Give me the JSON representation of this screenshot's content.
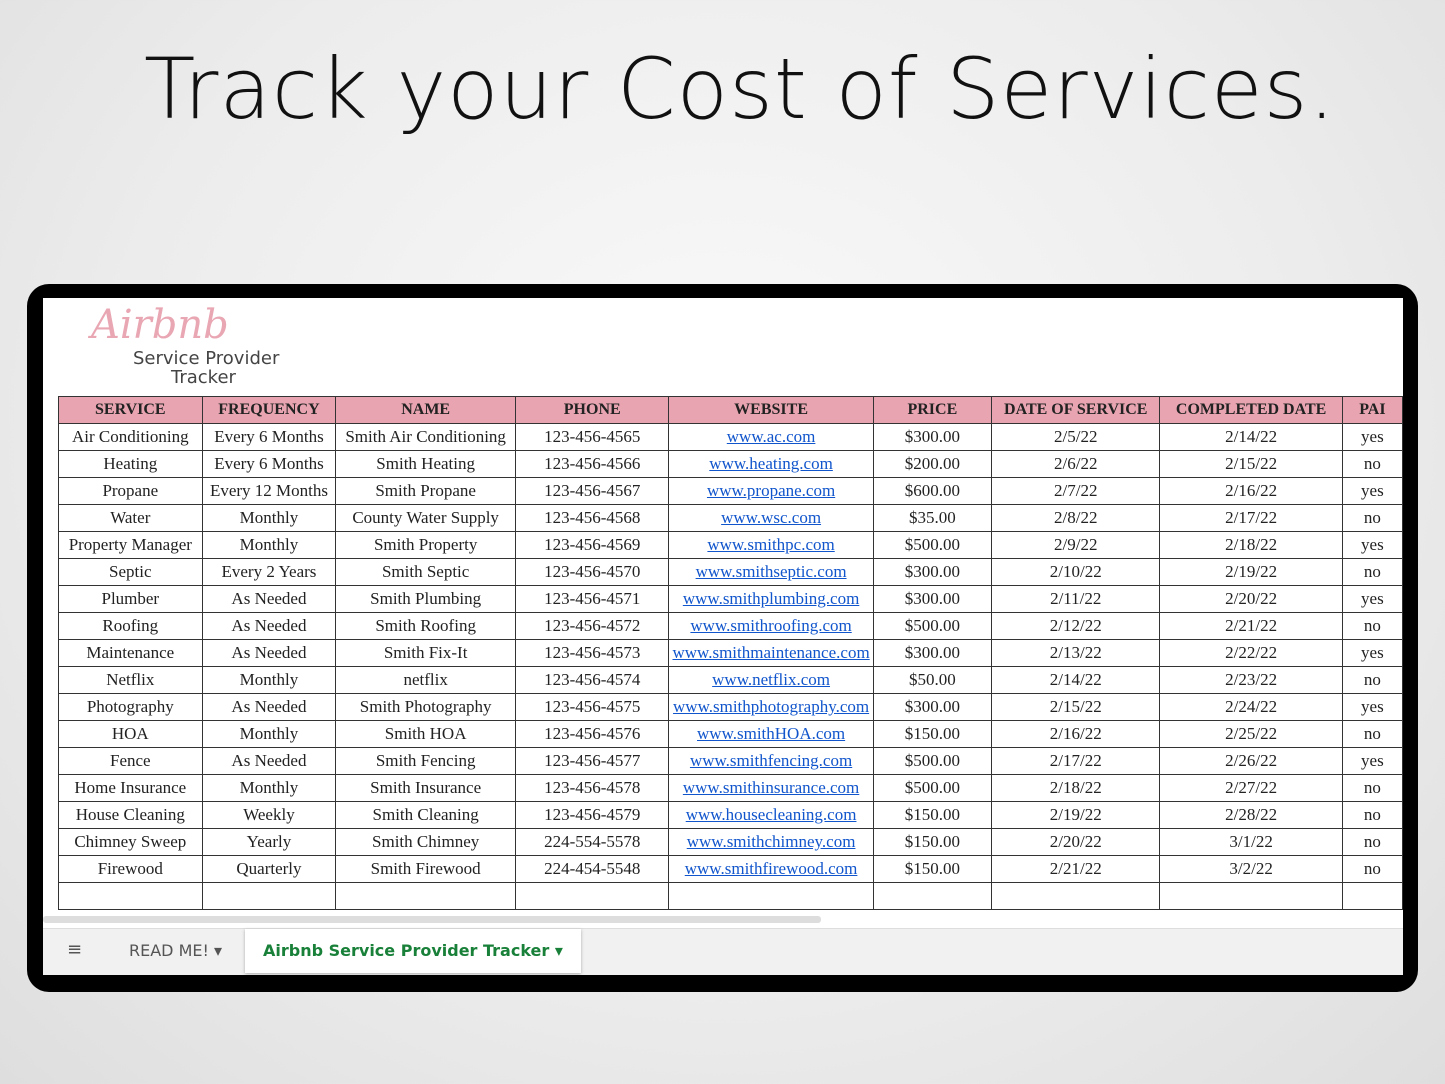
{
  "header": {
    "title": "Track your Cost of Services."
  },
  "logo": {
    "brand": "Airbnb",
    "line1": "Service Provider",
    "line2": "Tracker"
  },
  "table": {
    "columns": [
      "SERVICE",
      "FREQUENCY",
      "NAME",
      "PHONE",
      "WEBSITE",
      "PRICE",
      "DATE OF SERVICE",
      "COMPLETED DATE",
      "PAI"
    ],
    "rows": [
      [
        "Air Conditioning",
        "Every 6 Months",
        "Smith Air Conditioning",
        "123-456-4565",
        "www.ac.com",
        "$300.00",
        "2/5/22",
        "2/14/22",
        "yes"
      ],
      [
        "Heating",
        "Every 6 Months",
        "Smith Heating",
        "123-456-4566",
        "www.heating.com",
        "$200.00",
        "2/6/22",
        "2/15/22",
        "no"
      ],
      [
        "Propane",
        "Every 12 Months",
        "Smith Propane",
        "123-456-4567",
        "www.propane.com",
        "$600.00",
        "2/7/22",
        "2/16/22",
        "yes"
      ],
      [
        "Water",
        "Monthly",
        "County Water Supply",
        "123-456-4568",
        "www.wsc.com",
        "$35.00",
        "2/8/22",
        "2/17/22",
        "no"
      ],
      [
        "Property Manager",
        "Monthly",
        "Smith Property",
        "123-456-4569",
        "www.smithpc.com",
        "$500.00",
        "2/9/22",
        "2/18/22",
        "yes"
      ],
      [
        "Septic",
        "Every 2 Years",
        "Smith Septic",
        "123-456-4570",
        "www.smithseptic.com",
        "$300.00",
        "2/10/22",
        "2/19/22",
        "no"
      ],
      [
        "Plumber",
        "As Needed",
        "Smith Plumbing",
        "123-456-4571",
        "www.smithplumbing.com",
        "$300.00",
        "2/11/22",
        "2/20/22",
        "yes"
      ],
      [
        "Roofing",
        "As Needed",
        "Smith Roofing",
        "123-456-4572",
        "www.smithroofing.com",
        "$500.00",
        "2/12/22",
        "2/21/22",
        "no"
      ],
      [
        "Maintenance",
        "As Needed",
        "Smith Fix-It",
        "123-456-4573",
        "www.smithmaintenance.com",
        "$300.00",
        "2/13/22",
        "2/22/22",
        "yes"
      ],
      [
        "Netflix",
        "Monthly",
        "netflix",
        "123-456-4574",
        "www.netflix.com",
        "$50.00",
        "2/14/22",
        "2/23/22",
        "no"
      ],
      [
        "Photography",
        "As Needed",
        "Smith Photography",
        "123-456-4575",
        "www.smithphotography.com",
        "$300.00",
        "2/15/22",
        "2/24/22",
        "yes"
      ],
      [
        "HOA",
        "Monthly",
        "Smith HOA",
        "123-456-4576",
        "www.smithHOA.com",
        "$150.00",
        "2/16/22",
        "2/25/22",
        "no"
      ],
      [
        "Fence",
        "As Needed",
        "Smith Fencing",
        "123-456-4577",
        "www.smithfencing.com",
        "$500.00",
        "2/17/22",
        "2/26/22",
        "yes"
      ],
      [
        "Home Insurance",
        "Monthly",
        "Smith Insurance",
        "123-456-4578",
        "www.smithinsurance.com",
        "$500.00",
        "2/18/22",
        "2/27/22",
        "no"
      ],
      [
        "House Cleaning",
        "Weekly",
        "Smith Cleaning",
        "123-456-4579",
        "www.housecleaning.com",
        "$150.00",
        "2/19/22",
        "2/28/22",
        "no"
      ],
      [
        "Chimney Sweep",
        "Yearly",
        "Smith Chimney",
        "224-554-5578",
        "www.smithchimney.com",
        "$150.00",
        "2/20/22",
        "3/1/22",
        "no"
      ],
      [
        "Firewood",
        "Quarterly",
        "Smith Firewood",
        "224-454-5548",
        "www.smithfirewood.com",
        "$150.00",
        "2/21/22",
        "3/2/22",
        "no"
      ]
    ]
  },
  "tabs": [
    "READ ME!",
    "Airbnb Service Provider Tracker"
  ]
}
